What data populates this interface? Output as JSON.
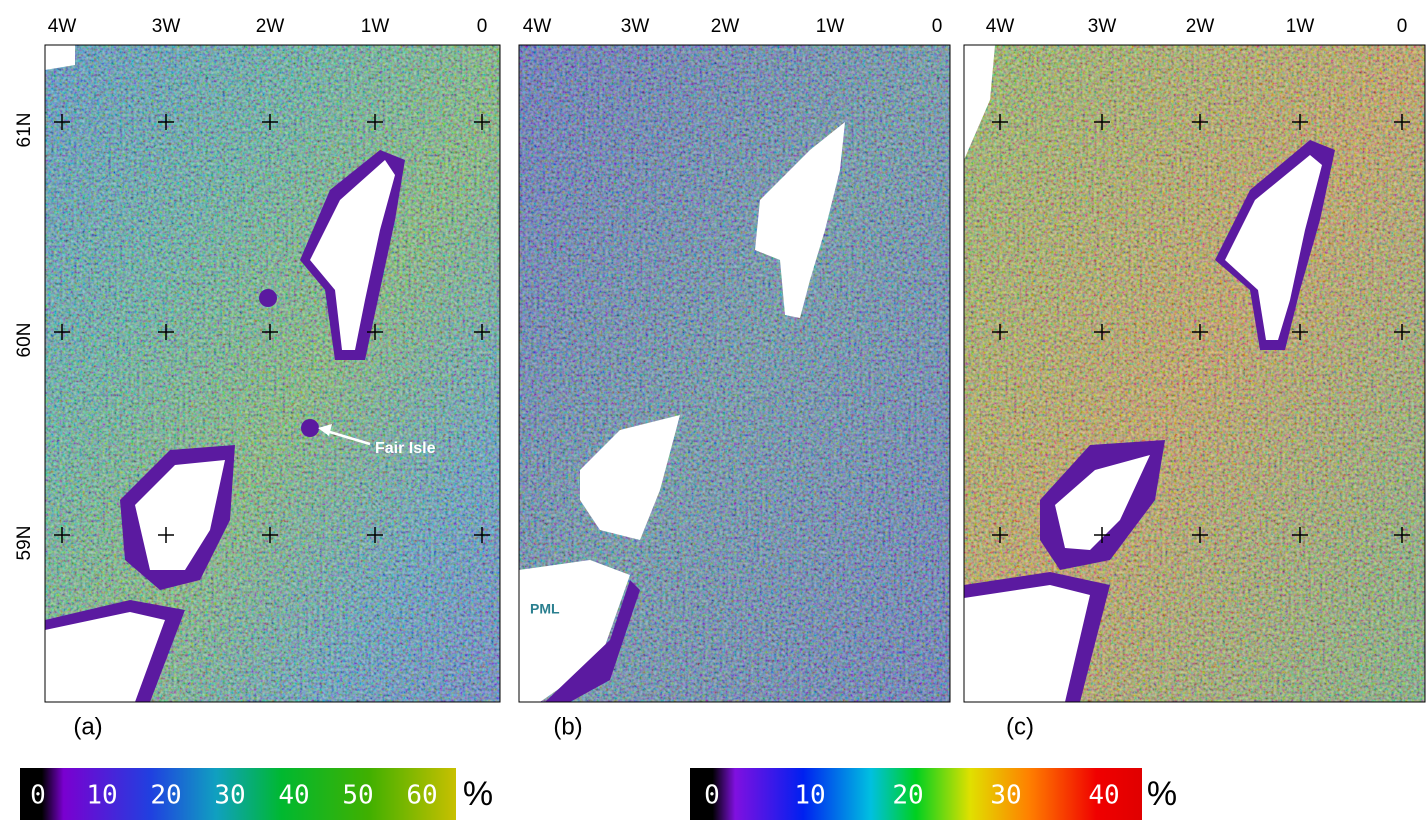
{
  "panels": [
    {
      "label": "(a)",
      "lon_labels": [
        "4W",
        "3W",
        "2W",
        "1W",
        "0"
      ],
      "annotation": "Fair Isle"
    },
    {
      "label": "(b)",
      "lon_labels": [
        "4W",
        "3W",
        "2W",
        "1W",
        "0"
      ],
      "annotation": "PML"
    },
    {
      "label": "(c)",
      "lon_labels": [
        "4W",
        "3W",
        "2W",
        "1W",
        "0"
      ]
    }
  ],
  "lat_labels": [
    "61N",
    "60N",
    "59N"
  ],
  "colorbars": [
    {
      "labels": [
        "0",
        "10",
        "20",
        "30",
        "40",
        "50",
        "60"
      ],
      "unit": "%"
    },
    {
      "labels": [
        "0",
        "10",
        "20",
        "30",
        "40"
      ],
      "unit": "%"
    }
  ]
}
